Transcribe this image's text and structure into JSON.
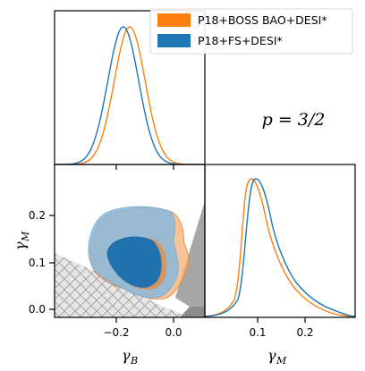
{
  "chart_data": {
    "type": "corner",
    "panels": [
      {
        "id": "gammaB-marginal",
        "type": "line",
        "xlim": [
          -0.31,
          0.04
        ]
      },
      {
        "id": "gammaM-vs-gammaB",
        "type": "contour",
        "xlim": [
          -0.31,
          0.04
        ],
        "ylim": [
          -0.02,
          0.31
        ]
      },
      {
        "id": "gammaM-marginal",
        "type": "line",
        "xlim": [
          0.0,
          0.3
        ]
      }
    ],
    "x_tick_labels": [
      "−0.2",
      "0.0"
    ],
    "y_tick_labels": [
      "0.2",
      "0.1",
      "0.0"
    ],
    "gammaM_tick_labels": [
      "0.1",
      "0.2"
    ],
    "xlabel_main": "γ",
    "xlabel_sub": "B",
    "ylabel_main": "γ",
    "ylabel_sub": "M",
    "annotation": "p = 3/2",
    "series": [
      {
        "name": "P18+BOSS BAO+DESI*",
        "color": "#ff7f0e",
        "gammaB_marginal": {
          "mean": -0.135,
          "sigma": 0.036
        },
        "gammaM_marginal": {
          "peak": 0.082
        }
      },
      {
        "name": "P18+FS+DESI*",
        "color": "#1f77b4",
        "gammaB_marginal": {
          "mean": -0.15,
          "sigma": 0.036
        },
        "gammaM_marginal": {
          "peak": 0.09
        }
      }
    ]
  }
}
